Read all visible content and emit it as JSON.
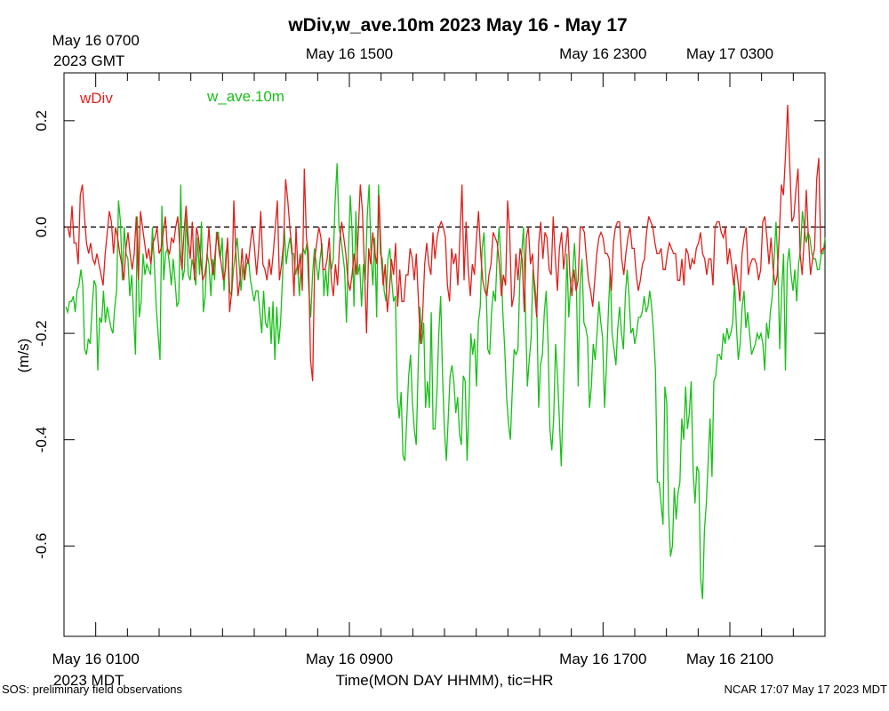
{
  "chart_data": {
    "type": "line",
    "title": "wDiv,w_ave.10m 2023 May 16 - May 17",
    "ylabel": "(m/s)",
    "xlabel": "Time(MON DAY HHMM), tic=HR",
    "ylim": [
      -0.77,
      0.29
    ],
    "xlim_hours": [
      0,
      24
    ],
    "yticks": [
      0.2,
      0.0,
      -0.2,
      -0.4,
      -0.6
    ],
    "ytick_labels": [
      "0.2",
      "0.0",
      "-0.2",
      "-0.4",
      "-0.6"
    ],
    "reference_line": 0.0,
    "bottom_axis": {
      "timezone_label": "2023 MDT",
      "labels": [
        {
          "hour": 1,
          "text": "May 16 0100"
        },
        {
          "hour": 9,
          "text": "May 16 0900"
        },
        {
          "hour": 17,
          "text": "May 16 1700"
        },
        {
          "hour": 21,
          "text": "May 16 2100"
        }
      ]
    },
    "top_axis": {
      "timezone_label": "2023 GMT",
      "labels": [
        {
          "hour": 1,
          "text": "May 16 0700"
        },
        {
          "hour": 9,
          "text": "May 16 1500"
        },
        {
          "hour": 17,
          "text": "May 16 2300"
        },
        {
          "hour": 21,
          "text": "May 17 0300"
        }
      ]
    },
    "series": [
      {
        "name": "wDiv",
        "color": "#e0201c",
        "values": [
          0.0,
          0.0,
          -0.02,
          0.04,
          -0.03,
          -0.03,
          -0.07,
          0.06,
          0.08,
          0.02,
          -0.03,
          -0.05,
          -0.03,
          -0.06,
          -0.07,
          -0.05,
          -0.07,
          -0.09,
          -0.11,
          -0.05,
          -0.01,
          0.03,
          0.01,
          -0.05,
          0.0,
          -0.02,
          -0.05,
          -0.07,
          -0.1,
          -0.04,
          -0.01,
          -0.05,
          -0.08,
          -0.05,
          0.02,
          -0.1,
          0.03,
          0.0,
          -0.03,
          -0.06,
          -0.04,
          -0.07,
          -0.03,
          -0.02,
          0.0,
          -0.05,
          -0.04,
          -0.01,
          0.02,
          -0.04,
          -0.05,
          -0.02,
          -0.03,
          0.0,
          0.02,
          -0.04,
          -0.08,
          -0.01,
          0.04,
          -0.02,
          -0.06,
          0.01,
          -0.1,
          0.0,
          -0.02,
          -0.06,
          -0.1,
          -0.09,
          -0.06,
          0.0,
          -0.06,
          -0.09,
          -0.05,
          -0.01,
          -0.05,
          -0.07,
          -0.1,
          -0.08,
          -0.02,
          -0.16,
          -0.12,
          0.05,
          -0.05,
          -0.13,
          -0.1,
          -0.04,
          -0.1,
          -0.05,
          -0.07,
          -0.03,
          0.0,
          -0.04,
          -0.09,
          -0.04,
          0.03,
          -0.07,
          -0.08,
          -0.1,
          -0.06,
          -0.09,
          -0.05,
          0.0,
          0.05,
          -0.1,
          -0.07,
          -0.03,
          0.09,
          0.05,
          0.0,
          -0.04,
          -0.13,
          0.0,
          -0.09,
          -0.05,
          -0.12,
          0.11,
          -0.02,
          -0.05,
          -0.25,
          -0.29,
          -0.06,
          -0.03,
          0.0,
          -0.02,
          -0.08,
          -0.08,
          -0.06,
          -0.02,
          -0.1,
          -0.13,
          -0.07,
          -0.11,
          -0.03,
          0.01,
          -0.02,
          -0.05,
          -0.1,
          -0.12,
          -0.09,
          -0.05,
          -0.09,
          -0.01,
          0.08,
          0.03,
          -0.08,
          -0.2,
          -0.04,
          -0.07,
          -0.01,
          -0.05,
          -0.07,
          0.06,
          -0.05,
          -0.11,
          -0.07,
          -0.16,
          -0.12,
          -0.06,
          -0.09,
          -0.03,
          -0.15,
          -0.08,
          -0.14,
          -0.14,
          -0.09,
          -0.09,
          -0.04,
          -0.06,
          -0.1,
          -0.05,
          -0.14,
          -0.22,
          -0.17,
          -0.07,
          -0.03,
          -0.07,
          -0.09,
          -0.01,
          -0.06,
          -0.02,
          0.0,
          0.01,
          0.0,
          -0.02,
          -0.11,
          -0.14,
          -0.04,
          -0.07,
          -0.05,
          -0.11,
          -0.02,
          0.08,
          -0.1,
          0.01,
          -0.08,
          -0.13,
          -0.07,
          -0.09,
          -0.02,
          0.03,
          -0.05,
          -0.1,
          -0.12,
          -0.13,
          -0.09,
          -0.07,
          -0.01,
          -0.02,
          -0.03,
          -0.07,
          -0.13,
          -0.09,
          -0.11,
          0.05,
          -0.01,
          -0.15,
          -0.13,
          -0.05,
          -0.1,
          -0.04,
          -0.06,
          -0.16,
          -0.02,
          0.0,
          -0.07,
          -0.05,
          -0.12,
          -0.17,
          -0.03,
          0.01,
          -0.06,
          -0.01,
          -0.02,
          -0.08,
          -0.09,
          0.02,
          -0.06,
          -0.12,
          -0.04,
          -0.01,
          -0.08,
          -0.04,
          0.0,
          -0.09,
          -0.13,
          -0.08,
          -0.12,
          -0.1,
          0.0,
          0.0,
          -0.01,
          -0.06,
          -0.1,
          -0.12,
          -0.15,
          -0.1,
          -0.05,
          -0.02,
          -0.01,
          -0.02,
          -0.05,
          -0.05,
          -0.06,
          -0.12,
          -0.03,
          0.0,
          0.01,
          0.01,
          -0.06,
          -0.09,
          -0.05,
          -0.02,
          0.0,
          -0.04,
          -0.04,
          -0.09,
          -0.12,
          -0.1,
          -0.07,
          -0.06,
          -0.01,
          0.02,
          0.01,
          0.0,
          -0.03,
          -0.05,
          -0.05,
          -0.04,
          -0.08,
          -0.08,
          -0.05,
          -0.03,
          -0.04,
          -0.05,
          -0.05,
          -0.1,
          -0.1,
          -0.06,
          -0.11,
          -0.04,
          -0.05,
          -0.08,
          -0.06,
          -0.07,
          -0.04,
          -0.03,
          -0.01,
          -0.05,
          -0.06,
          -0.09,
          -0.06,
          -0.06,
          -0.11,
          0.0,
          0.01,
          0.01,
          -0.01,
          -0.02,
          0.0,
          -0.07,
          -0.04,
          -0.07,
          -0.11,
          -0.07,
          -0.1,
          -0.14,
          -0.05,
          -0.02,
          0.0,
          -0.09,
          -0.07,
          -0.06,
          -0.06,
          -0.07,
          -0.1,
          -0.08,
          0.01,
          0.02,
          -0.02,
          -0.07,
          -0.02,
          -0.08,
          -0.11,
          -0.09,
          -0.01,
          0.08,
          0.06,
          0.14,
          0.23,
          0.12,
          0.01,
          0.02,
          0.07,
          0.11,
          -0.05,
          -0.09,
          -0.02,
          0.07,
          -0.02,
          -0.09,
          -0.06,
          -0.04,
          0.09,
          0.13,
          -0.05,
          -0.04,
          -0.04
        ]
      },
      {
        "name": "w_ave.10m",
        "color": "#18c018",
        "values": [
          -0.15,
          -0.16,
          -0.14,
          -0.14,
          -0.13,
          -0.16,
          -0.12,
          -0.11,
          -0.08,
          -0.11,
          -0.23,
          -0.24,
          -0.21,
          -0.22,
          -0.15,
          -0.1,
          -0.11,
          -0.27,
          -0.17,
          -0.18,
          -0.12,
          -0.18,
          -0.15,
          -0.17,
          -0.19,
          -0.2,
          -0.15,
          -0.12,
          0.05,
          0.01,
          -0.1,
          0.0,
          -0.05,
          -0.06,
          -0.13,
          -0.09,
          -0.17,
          -0.24,
          0.02,
          -0.17,
          -0.14,
          -0.05,
          -0.09,
          -0.07,
          -0.08,
          -0.09,
          0.0,
          -0.07,
          -0.15,
          -0.2,
          -0.25,
          0.04,
          -0.1,
          -0.05,
          -0.04,
          -0.07,
          -0.11,
          -0.06,
          -0.1,
          -0.15,
          -0.14,
          0.08,
          -0.1,
          -0.08,
          0.03,
          -0.09,
          -0.1,
          -0.06,
          -0.08,
          -0.11,
          -0.02,
          -0.09,
          0.01,
          -0.16,
          -0.13,
          -0.05,
          -0.07,
          -0.13,
          -0.06,
          -0.1,
          -0.01,
          -0.01,
          -0.06,
          -0.02,
          -0.12,
          -0.05,
          -0.03,
          -0.12,
          -0.13,
          -0.08,
          -0.05,
          -0.02,
          -0.07,
          -0.12,
          -0.07,
          -0.1,
          -0.07,
          -0.06,
          -0.1,
          -0.12,
          -0.14,
          -0.12,
          -0.12,
          -0.16,
          -0.2,
          -0.12,
          -0.18,
          -0.19,
          -0.15,
          -0.22,
          -0.14,
          -0.25,
          -0.15,
          -0.22,
          -0.18,
          -0.1,
          0.0,
          -0.07,
          -0.04,
          -0.02,
          -0.05,
          -0.05,
          -0.09,
          -0.07,
          -0.13,
          -0.06,
          -0.04,
          -0.05,
          -0.03,
          -0.12,
          -0.17,
          -0.09,
          -0.04,
          -0.07,
          -0.1,
          -0.06,
          -0.03,
          -0.13,
          -0.08,
          -0.13,
          -0.05,
          -0.08,
          -0.06,
          0.05,
          0.12,
          0.0,
          -0.02,
          -0.05,
          -0.08,
          -0.18,
          -0.05,
          0.06,
          -0.01,
          -0.15,
          0.03,
          -0.09,
          -0.07,
          -0.15,
          -0.07,
          -0.1,
          0.02,
          0.08,
          -0.05,
          -0.11,
          -0.02,
          -0.17,
          0.08,
          -0.05,
          -0.06,
          -0.12,
          -0.14,
          -0.06,
          -0.04,
          -0.1,
          -0.14,
          -0.13,
          -0.32,
          -0.36,
          -0.31,
          -0.43,
          -0.44,
          -0.36,
          -0.28,
          -0.24,
          -0.33,
          -0.38,
          -0.41,
          -0.27,
          -0.15,
          -0.22,
          -0.18,
          -0.34,
          -0.29,
          -0.34,
          -0.16,
          -0.38,
          -0.38,
          -0.31,
          -0.2,
          -0.13,
          -0.28,
          -0.38,
          -0.44,
          -0.36,
          -0.28,
          -0.26,
          -0.29,
          -0.35,
          -0.32,
          -0.39,
          -0.41,
          -0.28,
          -0.29,
          -0.44,
          -0.34,
          -0.2,
          -0.24,
          -0.21,
          -0.3,
          -0.18,
          -0.15,
          -0.04,
          -0.01,
          -0.1,
          -0.23,
          -0.24,
          -0.16,
          -0.12,
          -0.14,
          -0.05,
          0.0,
          -0.06,
          -0.16,
          -0.23,
          -0.32,
          -0.37,
          -0.4,
          -0.31,
          -0.23,
          -0.24,
          -0.23,
          -0.1,
          -0.05,
          0.0,
          -0.16,
          -0.3,
          -0.25,
          -0.21,
          -0.08,
          -0.11,
          -0.15,
          -0.34,
          -0.26,
          -0.24,
          -0.16,
          -0.12,
          -0.22,
          -0.38,
          -0.42,
          -0.36,
          -0.22,
          -0.28,
          -0.36,
          -0.45,
          -0.33,
          -0.2,
          -0.05,
          -0.17,
          -0.11,
          -0.09,
          -0.03,
          -0.1,
          -0.3,
          -0.11,
          -0.06,
          -0.18,
          -0.19,
          -0.21,
          -0.34,
          -0.3,
          -0.22,
          -0.25,
          -0.2,
          -0.14,
          -0.18,
          -0.21,
          -0.34,
          -0.26,
          -0.16,
          -0.08,
          -0.2,
          -0.23,
          -0.26,
          -0.19,
          -0.15,
          -0.2,
          -0.23,
          -0.13,
          -0.08,
          -0.13,
          -0.2,
          -0.19,
          -0.22,
          -0.2,
          -0.17,
          -0.17,
          -0.16,
          -0.13,
          -0.16,
          -0.15,
          -0.12,
          -0.15,
          -0.2,
          -0.27,
          -0.48,
          -0.48,
          -0.52,
          -0.56,
          -0.3,
          -0.33,
          -0.53,
          -0.62,
          -0.6,
          -0.49,
          -0.55,
          -0.5,
          -0.48,
          -0.36,
          -0.4,
          -0.3,
          -0.38,
          -0.35,
          -0.29,
          -0.46,
          -0.52,
          -0.45,
          -0.46,
          -0.66,
          -0.7,
          -0.57,
          -0.52,
          -0.44,
          -0.36,
          -0.47,
          -0.29,
          -0.28,
          -0.24,
          -0.24,
          -0.25,
          -0.2,
          -0.22,
          -0.19,
          -0.21,
          -0.2,
          -0.18,
          -0.1,
          -0.19,
          -0.25,
          -0.22,
          -0.15,
          -0.12,
          -0.19,
          -0.16,
          -0.2,
          -0.24,
          -0.23,
          -0.22,
          -0.2,
          -0.21,
          -0.2,
          -0.22,
          -0.27,
          -0.18,
          -0.21,
          -0.16,
          -0.13,
          -0.06,
          0.01,
          -0.07,
          -0.23,
          -0.12,
          -0.05,
          -0.27,
          -0.07,
          -0.04,
          -0.09,
          -0.12,
          -0.08,
          -0.14,
          -0.07,
          -0.04,
          0.03,
          0.0,
          -0.03,
          -0.01,
          -0.02,
          -0.05,
          -0.06,
          -0.06,
          -0.08,
          -0.08,
          -0.05,
          -0.05,
          -0.02
        ]
      }
    ]
  },
  "footer": {
    "left": "SOS: preliminary field observations",
    "right": "NCAR 17:07 May 17 2023 MDT"
  }
}
